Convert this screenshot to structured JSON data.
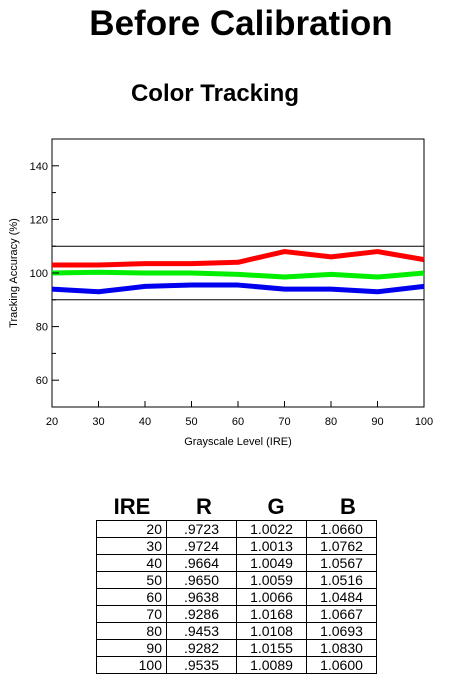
{
  "page": {
    "title": "Before Calibration",
    "subtitle": "Color Tracking"
  },
  "chart_data": {
    "type": "line",
    "title": "Color Tracking",
    "xlabel": "Grayscale Level (IRE)",
    "ylabel": "Tracking Accuracy (%)",
    "x": [
      20,
      30,
      40,
      50,
      60,
      70,
      80,
      90,
      100
    ],
    "xlim": [
      20,
      100
    ],
    "ylim": [
      50,
      150
    ],
    "x_ticks": [
      "20",
      "30",
      "40",
      "50",
      "60",
      "70",
      "80",
      "90",
      "100"
    ],
    "y_ticks": [
      "60",
      "80",
      "100",
      "120",
      "140"
    ],
    "reference_lines": [
      90,
      110
    ],
    "grid": false,
    "series": [
      {
        "color": "#ff0000",
        "values": [
          103,
          103,
          103.5,
          103.5,
          104,
          108,
          106,
          108,
          105
        ]
      },
      {
        "color": "#00ee00",
        "values": [
          100,
          100.3,
          100,
          100,
          99.5,
          98.5,
          99.5,
          98.5,
          100
        ]
      },
      {
        "color": "#0000ee",
        "values": [
          94,
          93,
          95,
          95.5,
          95.5,
          94,
          94,
          93,
          95
        ]
      }
    ]
  },
  "table": {
    "headers": [
      "IRE",
      "R",
      "G",
      "B"
    ],
    "rows": [
      [
        "20",
        ".9723",
        "1.0022",
        "1.0660"
      ],
      [
        "30",
        ".9724",
        "1.0013",
        "1.0762"
      ],
      [
        "40",
        ".9664",
        "1.0049",
        "1.0567"
      ],
      [
        "50",
        ".9650",
        "1.0059",
        "1.0516"
      ],
      [
        "60",
        ".9638",
        "1.0066",
        "1.0484"
      ],
      [
        "70",
        ".9286",
        "1.0168",
        "1.0667"
      ],
      [
        "80",
        ".9453",
        "1.0108",
        "1.0693"
      ],
      [
        "90",
        ".9282",
        "1.0155",
        "1.0830"
      ],
      [
        "100",
        ".9535",
        "1.0089",
        "1.0600"
      ]
    ]
  }
}
